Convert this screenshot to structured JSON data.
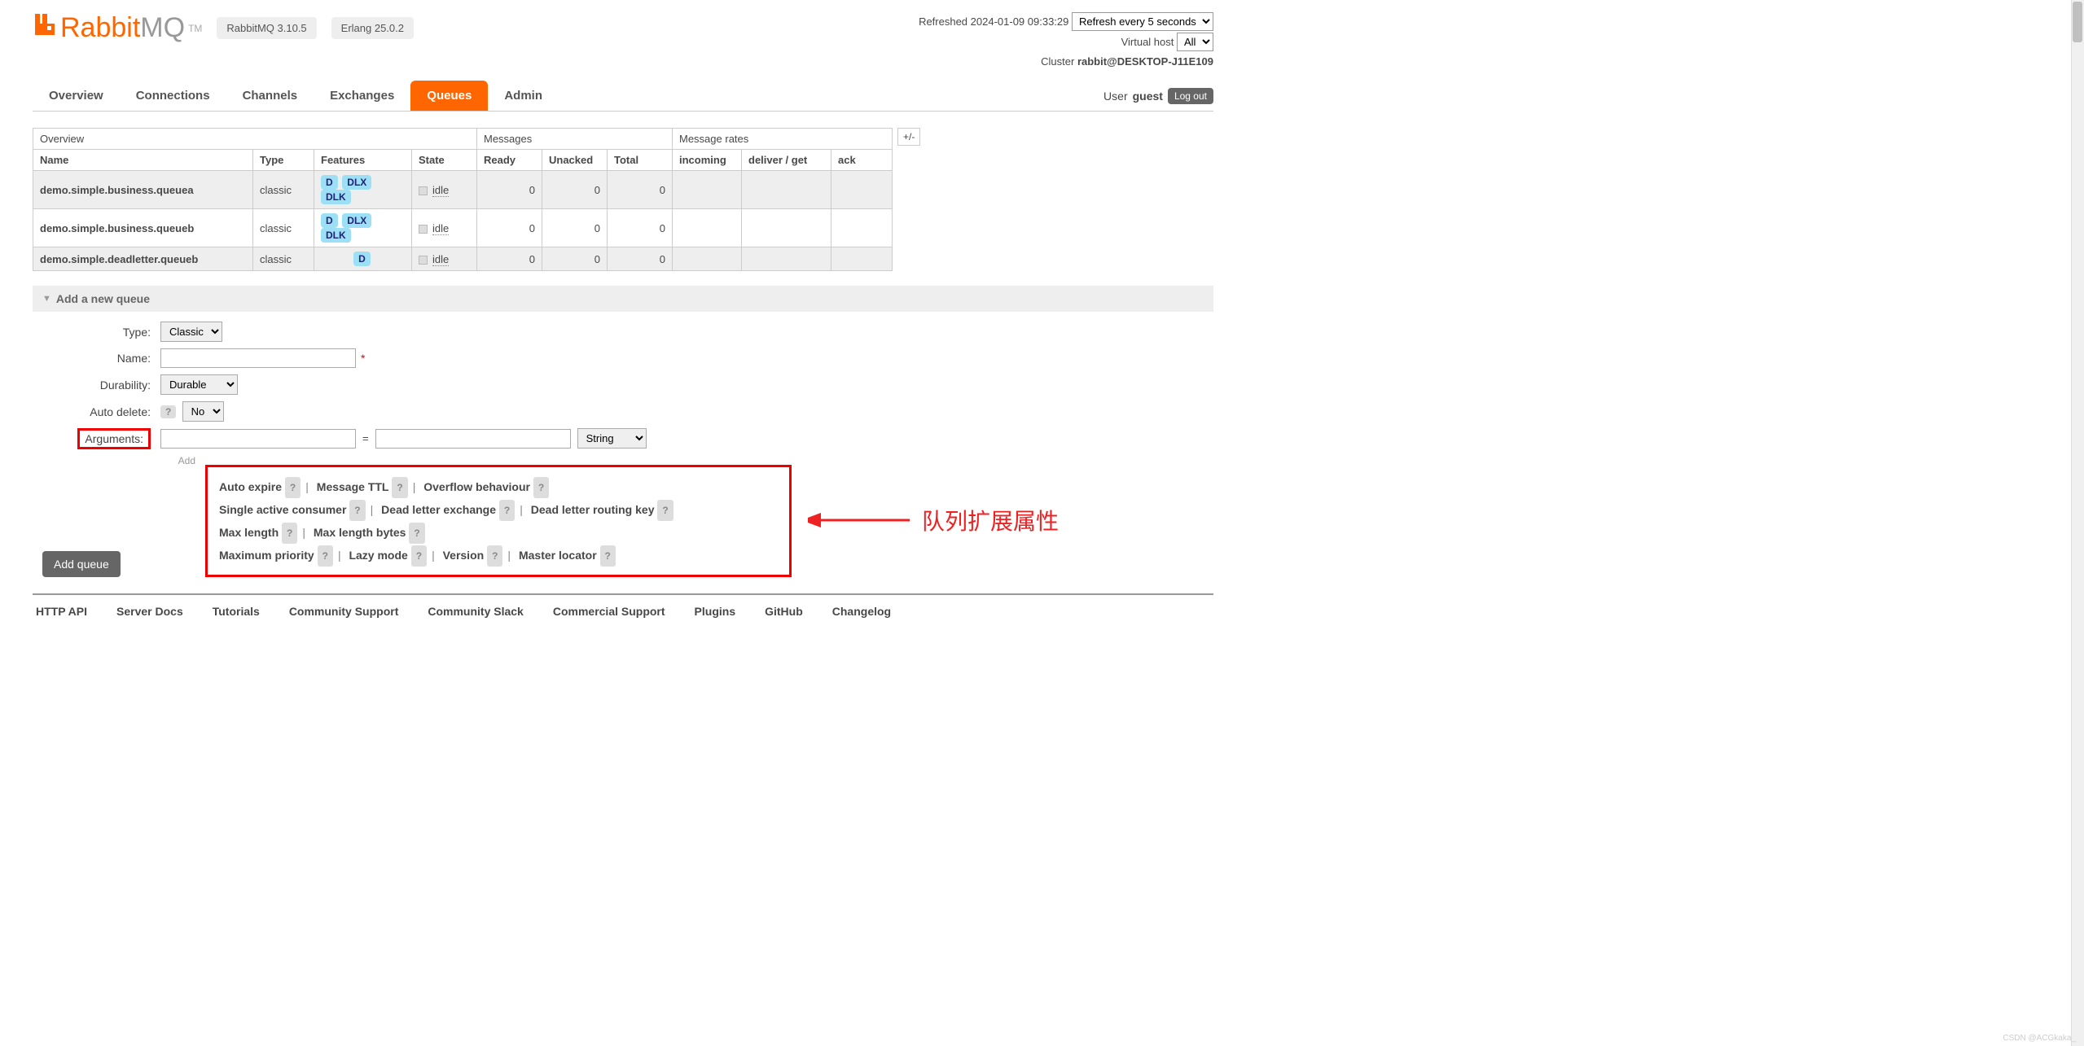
{
  "header": {
    "logo_rabbit": "Rabbit",
    "logo_mq": "MQ",
    "logo_tm": "TM",
    "version_rabbitmq": "RabbitMQ 3.10.5",
    "version_erlang": "Erlang 25.0.2",
    "refreshed": "Refreshed 2024-01-09 09:33:29",
    "refresh_select": "Refresh every 5 seconds",
    "vhost_label": "Virtual host",
    "vhost_select": "All",
    "cluster_label": "Cluster ",
    "cluster_value": "rabbit@DESKTOP-J11E109",
    "user_label": "User ",
    "user_value": "guest",
    "logout": "Log out"
  },
  "tabs": {
    "overview": "Overview",
    "connections": "Connections",
    "channels": "Channels",
    "exchanges": "Exchanges",
    "queues": "Queues",
    "admin": "Admin"
  },
  "table": {
    "group_overview": "Overview",
    "group_messages": "Messages",
    "group_rates": "Message rates",
    "plusminus": "+/-",
    "cols": {
      "name": "Name",
      "type": "Type",
      "features": "Features",
      "state": "State",
      "ready": "Ready",
      "unacked": "Unacked",
      "total": "Total",
      "incoming": "incoming",
      "deliver": "deliver / get",
      "ack": "ack"
    },
    "rows": [
      {
        "name": "demo.simple.business.queuea",
        "type": "classic",
        "features": [
          "D",
          "DLX",
          "DLK"
        ],
        "state": "idle",
        "ready": "0",
        "unacked": "0",
        "total": "0"
      },
      {
        "name": "demo.simple.business.queueb",
        "type": "classic",
        "features": [
          "D",
          "DLX",
          "DLK"
        ],
        "state": "idle",
        "ready": "0",
        "unacked": "0",
        "total": "0"
      },
      {
        "name": "demo.simple.deadletter.queueb",
        "type": "classic",
        "features": [
          "D"
        ],
        "state": "idle",
        "ready": "0",
        "unacked": "0",
        "total": "0"
      }
    ]
  },
  "form": {
    "section_title": "Add a new queue",
    "type_label": "Type:",
    "type_value": "Classic",
    "name_label": "Name:",
    "durability_label": "Durability:",
    "durability_value": "Durable",
    "auto_delete_label": "Auto delete:",
    "auto_delete_value": "No",
    "arguments_label": "Arguments:",
    "arg_type_value": "String",
    "equals": "=",
    "add_label": "Add",
    "options": {
      "auto_expire": "Auto expire",
      "message_ttl": "Message TTL",
      "overflow": "Overflow behaviour",
      "single_active": "Single active consumer",
      "dlx": "Dead letter exchange",
      "dlrk": "Dead letter routing key",
      "max_length": "Max length",
      "max_length_bytes": "Max length bytes",
      "max_priority": "Maximum priority",
      "lazy_mode": "Lazy mode",
      "version": "Version",
      "master_locator": "Master locator"
    },
    "submit": "Add queue"
  },
  "annotation": "队列扩展属性",
  "footer": {
    "http_api": "HTTP API",
    "server_docs": "Server Docs",
    "tutorials": "Tutorials",
    "community_support": "Community Support",
    "community_slack": "Community Slack",
    "commercial_support": "Commercial Support",
    "plugins": "Plugins",
    "github": "GitHub",
    "changelog": "Changelog"
  },
  "watermark": "CSDN @ACGkaka_",
  "colors": {
    "brand": "#ff6600",
    "badge_bg": "#9de0f6",
    "annotation_red": "#ee2222",
    "tab_active_bg": "#ff6600",
    "border_red": "#ee0000"
  }
}
